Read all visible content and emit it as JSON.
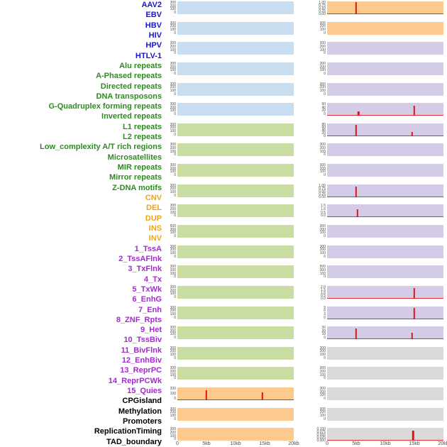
{
  "figure": {
    "x_axis": {
      "ticks": [
        "0",
        "5kb",
        "10kb",
        "15kb",
        "20kb"
      ]
    },
    "palette": {
      "panel": {
        "blue": "#c8def0",
        "green": "#c9dda2",
        "orange": "#fdc98c",
        "purple": "#d4cce6",
        "gray": "#d9d9d9"
      },
      "label": {
        "virus": "#1515d6",
        "repeat": "#2e8b22",
        "sv": "#efa512",
        "state": "#a22ad0",
        "other": "#000000"
      },
      "spike": "#e31313",
      "axis_text": "#4d4d4d"
    },
    "rows": [
      {
        "labels": [
          {
            "text": "AAV2",
            "group": "virus"
          },
          {
            "text": "EBV",
            "group": "virus"
          }
        ],
        "left": {
          "color": "blue",
          "yticks": [
            "300",
            "200",
            "100",
            "0"
          ],
          "spikes": []
        },
        "right": {
          "color": "orange",
          "yticks": [
            "1.00",
            "0.75",
            "0.50",
            "0.25",
            "0.00"
          ],
          "spikes": [
            {
              "x": 0.25,
              "h": 0.95
            }
          ]
        }
      },
      {
        "labels": [
          {
            "text": "HBV",
            "group": "virus"
          },
          {
            "text": "HIV",
            "group": "virus"
          }
        ],
        "left": {
          "color": "blue",
          "yticks": [
            "300",
            "200",
            "100",
            "0"
          ],
          "spikes": []
        },
        "right": {
          "color": "orange",
          "yticks": [
            "300",
            "200",
            "100",
            "0"
          ],
          "spikes": []
        }
      },
      {
        "labels": [
          {
            "text": "HPV",
            "group": "virus"
          },
          {
            "text": "HTLV-1",
            "group": "virus"
          }
        ],
        "left": {
          "color": "blue",
          "yticks": [
            "300",
            "200",
            "100",
            "0"
          ],
          "spikes": []
        },
        "right": {
          "color": "purple",
          "yticks": [
            "300",
            "200",
            "100",
            "0"
          ],
          "spikes": []
        }
      },
      {
        "labels": [
          {
            "text": "Alu repeats",
            "group": "repeat"
          },
          {
            "text": "A-Phased repeats",
            "group": "repeat"
          }
        ],
        "left": {
          "color": "blue",
          "yticks": [
            "300",
            "200",
            "100",
            "0"
          ],
          "spikes": []
        },
        "right": {
          "color": "purple",
          "yticks": [
            "300",
            "200",
            "100",
            "0"
          ],
          "spikes": []
        }
      },
      {
        "labels": [
          {
            "text": "Directed repeats",
            "group": "repeat"
          },
          {
            "text": "DNA transposons",
            "group": "repeat"
          }
        ],
        "left": {
          "color": "blue",
          "yticks": [
            "300",
            "200",
            "100",
            "0"
          ],
          "spikes": []
        },
        "right": {
          "color": "purple",
          "yticks": [
            "300",
            "200",
            "100",
            "0"
          ],
          "spikes": []
        }
      },
      {
        "labels": [
          {
            "text": "G-Quadruplex forming repeats",
            "group": "repeat"
          },
          {
            "text": "Inverted repeats",
            "group": "repeat"
          }
        ],
        "left": {
          "color": "blue",
          "yticks": [
            "300",
            "200",
            "100",
            "0"
          ],
          "spikes": []
        },
        "right": {
          "color": "purple",
          "yticks": [
            "60",
            "40",
            "20",
            "0"
          ],
          "spikes": [
            {
              "x": 0.27,
              "h": 0.35
            },
            {
              "x": 0.75,
              "h": 0.8
            }
          ]
        }
      },
      {
        "labels": [
          {
            "text": "L1 repeats",
            "group": "repeat"
          },
          {
            "text": "L2 repeats",
            "group": "repeat"
          }
        ],
        "left": {
          "color": "green",
          "yticks": [
            "300",
            "200",
            "100",
            "0"
          ],
          "spikes": []
        },
        "right": {
          "color": "purple",
          "yticks": [
            "80",
            "60",
            "40",
            "20",
            "0"
          ],
          "spikes": [
            {
              "x": 0.25,
              "h": 0.9
            },
            {
              "x": 0.73,
              "h": 0.3
            }
          ]
        }
      },
      {
        "labels": [
          {
            "text": "Low_complexity A/T rich regions",
            "group": "repeat"
          },
          {
            "text": "Microsatellites",
            "group": "repeat"
          }
        ],
        "left": {
          "color": "green",
          "yticks": [
            "300",
            "200",
            "100",
            "0"
          ],
          "spikes": []
        },
        "right": {
          "color": "purple",
          "yticks": [
            "300",
            "200",
            "100",
            "0"
          ],
          "spikes": []
        }
      },
      {
        "labels": [
          {
            "text": "MIR repeats",
            "group": "repeat"
          },
          {
            "text": "Mirror repeats",
            "group": "repeat"
          }
        ],
        "left": {
          "color": "green",
          "yticks": [
            "300",
            "200",
            "100",
            "0"
          ],
          "spikes": []
        },
        "right": {
          "color": "purple",
          "yticks": [
            "300",
            "200",
            "100",
            "0"
          ],
          "spikes": []
        }
      },
      {
        "labels": [
          {
            "text": "Z-DNA motifs",
            "group": "repeat"
          },
          {
            "text": "CNV",
            "group": "sv"
          }
        ],
        "left": {
          "color": "green",
          "yticks": [
            "300",
            "200",
            "100",
            "0"
          ],
          "spikes": []
        },
        "right": {
          "color": "purple",
          "yticks": [
            "1.00",
            "0.75",
            "0.50",
            "0.25",
            "0.00"
          ],
          "spikes": [
            {
              "x": 0.25,
              "h": 0.8
            }
          ]
        }
      },
      {
        "labels": [
          {
            "text": "DEL",
            "group": "sv"
          },
          {
            "text": "DUP",
            "group": "sv"
          }
        ],
        "left": {
          "color": "green",
          "yticks": [
            "300",
            "200",
            "100",
            "0"
          ],
          "spikes": []
        },
        "right": {
          "color": "purple",
          "yticks": [
            "1.5",
            "1.0",
            "0.5",
            "0.0"
          ],
          "spikes": [
            {
              "x": 0.26,
              "h": 0.65
            }
          ]
        }
      },
      {
        "labels": [
          {
            "text": "INS",
            "group": "sv"
          },
          {
            "text": "INV",
            "group": "sv"
          }
        ],
        "left": {
          "color": "green",
          "yticks": [
            "500",
            "300",
            "100",
            "0"
          ],
          "spikes": []
        },
        "right": {
          "color": "purple",
          "yticks": [
            "300",
            "200",
            "100",
            "0"
          ],
          "spikes": []
        }
      },
      {
        "labels": [
          {
            "text": "1_TssA",
            "group": "state"
          },
          {
            "text": "2_TssAFlnk",
            "group": "state"
          }
        ],
        "left": {
          "color": "green",
          "yticks": [
            "300",
            "200",
            "100",
            "0"
          ],
          "spikes": []
        },
        "right": {
          "color": "purple",
          "yticks": [
            "300",
            "200",
            "100",
            "0"
          ],
          "spikes": []
        }
      },
      {
        "labels": [
          {
            "text": "3_TxFlnk",
            "group": "state"
          },
          {
            "text": "4_Tx",
            "group": "state"
          }
        ],
        "left": {
          "color": "green",
          "yticks": [
            "300",
            "200",
            "100",
            "0"
          ],
          "spikes": []
        },
        "right": {
          "color": "purple",
          "yticks": [
            "500",
            "300",
            "100",
            "0"
          ],
          "spikes": []
        }
      },
      {
        "labels": [
          {
            "text": "5_TxWk",
            "group": "state"
          },
          {
            "text": "6_EnhG",
            "group": "state"
          }
        ],
        "left": {
          "color": "green",
          "yticks": [
            "300",
            "200",
            "100",
            "0"
          ],
          "spikes": []
        },
        "right": {
          "color": "purple",
          "yticks": [
            "2.0",
            "1.5",
            "1.0",
            "0.5",
            "0.0"
          ],
          "spikes": [
            {
              "x": 0.75,
              "h": 0.85
            }
          ]
        }
      },
      {
        "labels": [
          {
            "text": "7_Enh",
            "group": "state"
          },
          {
            "text": "8_ZNF_Rpts",
            "group": "state"
          }
        ],
        "left": {
          "color": "green",
          "yticks": [
            "300",
            "200",
            "100",
            "0"
          ],
          "spikes": []
        },
        "right": {
          "color": "purple",
          "yticks": [
            "9",
            "6",
            "3",
            "0"
          ],
          "spikes": [
            {
              "x": 0.75,
              "h": 0.85
            }
          ]
        }
      },
      {
        "labels": [
          {
            "text": "9_Het",
            "group": "state"
          },
          {
            "text": "10_TssBiv",
            "group": "state"
          }
        ],
        "left": {
          "color": "green",
          "yticks": [
            "300",
            "200",
            "100",
            "0"
          ],
          "spikes": []
        },
        "right": {
          "color": "purple",
          "yticks": [
            "30",
            "20",
            "10",
            "0"
          ],
          "spikes": [
            {
              "x": 0.25,
              "h": 0.85
            },
            {
              "x": 0.73,
              "h": 0.5
            }
          ]
        }
      },
      {
        "labels": [
          {
            "text": "11_BivFlnk",
            "group": "state"
          },
          {
            "text": "12_EnhBiv",
            "group": "state"
          }
        ],
        "left": {
          "color": "green",
          "yticks": [
            "300",
            "200",
            "100",
            "0"
          ],
          "spikes": []
        },
        "right": {
          "color": "gray",
          "yticks": [
            "300",
            "200",
            "100",
            "0"
          ],
          "spikes": []
        }
      },
      {
        "labels": [
          {
            "text": "13_ReprPC",
            "group": "state"
          },
          {
            "text": "14_ReprPCWk",
            "group": "state"
          }
        ],
        "left": {
          "color": "green",
          "yticks": [
            "300",
            "200",
            "100",
            "0"
          ],
          "spikes": []
        },
        "right": {
          "color": "gray",
          "yticks": [
            "300",
            "200",
            "100",
            "0"
          ],
          "spikes": []
        }
      },
      {
        "labels": [
          {
            "text": "15_Quies",
            "group": "state"
          },
          {
            "text": "CPGisland",
            "group": "other"
          }
        ],
        "left": {
          "color": "orange",
          "yticks": [
            "200",
            "100",
            "0"
          ],
          "spikes": [
            {
              "x": 0.25,
              "h": 0.8
            },
            {
              "x": 0.73,
              "h": 0.6
            }
          ]
        },
        "right": {
          "color": "gray",
          "yticks": [
            "300",
            "200",
            "100",
            "0"
          ],
          "spikes": []
        }
      },
      {
        "labels": [
          {
            "text": "Methylation",
            "group": "other"
          },
          {
            "text": "Promoters",
            "group": "other"
          }
        ],
        "left": {
          "color": "orange",
          "yticks": [
            "300",
            "200",
            "100",
            "0"
          ],
          "spikes": []
        },
        "right": {
          "color": "gray",
          "yticks": [
            "300",
            "200",
            "100",
            "0"
          ],
          "spikes": []
        }
      },
      {
        "labels": [
          {
            "text": "ReplicationTiming",
            "group": "other"
          },
          {
            "text": "TAD_boundary",
            "group": "other"
          }
        ],
        "left": {
          "color": "orange",
          "yticks": [
            "300",
            "200",
            "100",
            "0"
          ],
          "spikes": []
        },
        "right": {
          "color": "gray",
          "yticks": [
            "0.100",
            "0.075",
            "0.050",
            "0.025",
            "0.000"
          ],
          "spikes": [
            {
              "x": 0.74,
              "h": 0.8
            }
          ]
        }
      }
    ]
  },
  "chart_data": {
    "type": "area",
    "title": "",
    "x_ticks": [
      "0",
      "5kb",
      "10kb",
      "15kb",
      "20kb"
    ],
    "x_range_kb": [
      0,
      20
    ],
    "panel_columns": 2,
    "track_labels": [
      "AAV2",
      "EBV",
      "HBV",
      "HIV",
      "HPV",
      "HTLV-1",
      "Alu repeats",
      "A-Phased repeats",
      "Directed repeats",
      "DNA transposons",
      "G-Quadruplex forming repeats",
      "Inverted repeats",
      "L1 repeats",
      "L2 repeats",
      "Low_complexity A/T rich regions",
      "Microsatellites",
      "MIR repeats",
      "Mirror repeats",
      "Z-DNA motifs",
      "CNV",
      "DEL",
      "DUP",
      "INS",
      "INV",
      "1_TssA",
      "2_TssAFlnk",
      "3_TxFlnk",
      "4_Tx",
      "5_TxWk",
      "6_EnhG",
      "7_Enh",
      "8_ZNF_Rpts",
      "9_Het",
      "10_TssBiv",
      "11_BivFlnk",
      "12_EnhBiv",
      "13_ReprPC",
      "14_ReprPCWk",
      "15_Quies",
      "CPGisland",
      "Methylation",
      "Promoters",
      "ReplicationTiming",
      "TAD_boundary"
    ],
    "red_peaks": [
      {
        "column": "left",
        "tracks": [
          "15_Quies",
          "CPGisland"
        ],
        "peaks": [
          {
            "x_kb": 5,
            "rel_height": 0.8
          },
          {
            "x_kb": 14.6,
            "rel_height": 0.6
          }
        ]
      },
      {
        "column": "right",
        "tracks": [
          "AAV2",
          "EBV"
        ],
        "peaks": [
          {
            "x_kb": 5,
            "rel_height": 0.95
          }
        ]
      },
      {
        "column": "right",
        "tracks": [
          "G-Quadruplex forming repeats",
          "Inverted repeats"
        ],
        "peaks": [
          {
            "x_kb": 5.4,
            "rel_height": 0.35
          },
          {
            "x_kb": 15,
            "rel_height": 0.8
          }
        ]
      },
      {
        "column": "right",
        "tracks": [
          "L1 repeats",
          "L2 repeats"
        ],
        "peaks": [
          {
            "x_kb": 5,
            "rel_height": 0.9
          },
          {
            "x_kb": 14.6,
            "rel_height": 0.3
          }
        ]
      },
      {
        "column": "right",
        "tracks": [
          "Z-DNA motifs",
          "CNV"
        ],
        "peaks": [
          {
            "x_kb": 5,
            "rel_height": 0.8
          }
        ]
      },
      {
        "column": "right",
        "tracks": [
          "DEL",
          "DUP"
        ],
        "peaks": [
          {
            "x_kb": 5.2,
            "rel_height": 0.65
          }
        ]
      },
      {
        "column": "right",
        "tracks": [
          "5_TxWk",
          "6_EnhG"
        ],
        "peaks": [
          {
            "x_kb": 15,
            "rel_height": 0.85
          }
        ]
      },
      {
        "column": "right",
        "tracks": [
          "7_Enh",
          "8_ZNF_Rpts"
        ],
        "peaks": [
          {
            "x_kb": 15,
            "rel_height": 0.85
          }
        ]
      },
      {
        "column": "right",
        "tracks": [
          "9_Het",
          "10_TssBiv"
        ],
        "peaks": [
          {
            "x_kb": 5,
            "rel_height": 0.85
          },
          {
            "x_kb": 14.6,
            "rel_height": 0.5
          }
        ]
      },
      {
        "column": "right",
        "tracks": [
          "ReplicationTiming",
          "TAD_boundary"
        ],
        "peaks": [
          {
            "x_kb": 14.8,
            "rel_height": 0.8
          }
        ]
      }
    ]
  }
}
